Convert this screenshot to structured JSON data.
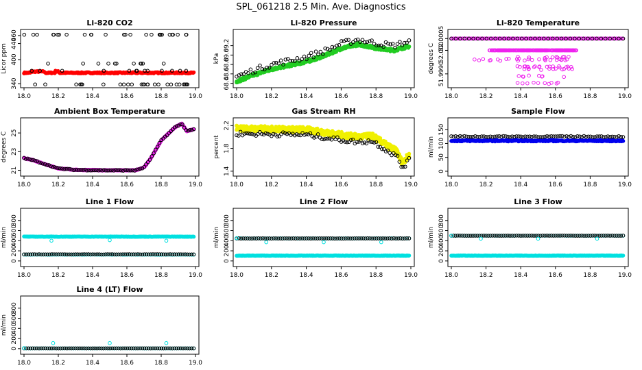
{
  "figure_title": "SPL_061218  2.5 Min. Ave. Diagnostics",
  "chart_data": [
    {
      "id": "co2",
      "type": "scatter",
      "title": "Li-820 CO2",
      "ylabel": "Licor ppm",
      "xlim": [
        18.0,
        19.0
      ],
      "ylim": [
        335,
        470
      ],
      "xticks": [
        "18.0",
        "18.2",
        "18.4",
        "18.6",
        "18.8",
        "19.0"
      ],
      "yticks": [
        {
          "v": 340,
          "t": "340"
        },
        {
          "v": 400,
          "t": "400"
        },
        {
          "v": 440,
          "t": "440"
        },
        {
          "v": 460,
          "t": "460"
        }
      ],
      "series": [
        {
          "name": "base",
          "color": "#ff0000",
          "style": "band",
          "base": 367,
          "noise": 1.5,
          "bumps": [
            [
              18.04,
              18.12,
              3
            ],
            [
              18.18,
              18.2,
              4
            ]
          ]
        },
        {
          "name": "diag",
          "color": "#000000",
          "style": "scatter",
          "n": 78,
          "groups": [
            [
              462,
              0.3
            ],
            [
              390,
              0.2
            ],
            [
              372,
              0.15
            ],
            [
              338,
              0.35
            ]
          ]
        }
      ]
    },
    {
      "id": "pressure",
      "type": "scatter",
      "title": "Li-820 Pressure",
      "ylabel": "kPa",
      "xlim": [
        18.0,
        19.0
      ],
      "ylim": [
        68.35,
        69.5
      ],
      "xticks": [
        "18.0",
        "18.2",
        "18.4",
        "18.6",
        "18.8",
        "19.0"
      ],
      "yticks": [
        {
          "v": 68.4,
          "t": "68.4"
        },
        {
          "v": 68.6,
          "t": "68.6"
        },
        {
          "v": 68.8,
          "t": "68.8"
        },
        {
          "v": 69.0,
          "t": "69.0"
        },
        {
          "v": 69.2,
          "t": "69.2"
        }
      ],
      "series": [
        {
          "name": "main",
          "color": "#22cc22",
          "style": "curve",
          "pts": [
            [
              18.0,
              68.44
            ],
            [
              18.1,
              68.58
            ],
            [
              18.2,
              68.7
            ],
            [
              18.4,
              68.86
            ],
            [
              18.5,
              68.98
            ],
            [
              18.6,
              69.14
            ],
            [
              18.7,
              69.23
            ],
            [
              18.8,
              69.15
            ],
            [
              18.9,
              69.1
            ],
            [
              18.98,
              69.18
            ]
          ],
          "noise": 0.03,
          "n": 240
        },
        {
          "name": "diag",
          "color": "#000000",
          "style": "scatter_follow",
          "offset": 0.1,
          "n": 75,
          "jitter": 0.06
        }
      ]
    },
    {
      "id": "licor_temp",
      "type": "scatter",
      "title": "Li-820 Temperature",
      "ylabel": "degrees C",
      "xlim": [
        18.0,
        19.0
      ],
      "ylim": [
        51.9985,
        52.0008
      ],
      "xticks": [
        "18.0",
        "18.2",
        "18.4",
        "18.6",
        "18.8",
        "19.0"
      ],
      "yticks": [
        {
          "v": 52.0005,
          "t": "52.0005"
        },
        {
          "v": 52.0,
          "t": "52.0000"
        },
        {
          "v": 51.999,
          "t": "51.9990"
        }
      ],
      "series": [
        {
          "name": "top",
          "color": "#ee22ee",
          "style": "row",
          "y": 52.0005,
          "x0": 18.0,
          "x1": 18.99
        },
        {
          "name": "mid",
          "color": "#ee22ee",
          "style": "row",
          "y": 52.0,
          "x0": 18.22,
          "x1": 18.72,
          "sparse": true
        },
        {
          "name": "low",
          "color": "#ee22ee",
          "style": "cluster"
        },
        {
          "name": "diag",
          "color": "#000000",
          "style": "row",
          "y": 52.0005,
          "x0": 18.0,
          "x1": 18.99,
          "n": 40
        }
      ]
    },
    {
      "id": "box_temp",
      "type": "scatter",
      "title": "Ambient Box Temperature",
      "ylabel": "degrees C",
      "xlim": [
        18.0,
        19.0
      ],
      "ylim": [
        20.6,
        26.4
      ],
      "xticks": [
        "18.0",
        "18.2",
        "18.4",
        "18.6",
        "18.8",
        "19.0"
      ],
      "yticks": [
        {
          "v": 21,
          "t": "21"
        },
        {
          "v": 23,
          "t": "23"
        },
        {
          "v": 25,
          "t": "25"
        }
      ],
      "series": [
        {
          "name": "main",
          "color": "#ee22ee",
          "style": "curve",
          "pts": [
            [
              18.0,
              22.3
            ],
            [
              18.05,
              22.1
            ],
            [
              18.1,
              21.8
            ],
            [
              18.2,
              21.2
            ],
            [
              18.3,
              21.05
            ],
            [
              18.5,
              21.0
            ],
            [
              18.65,
              21.0
            ],
            [
              18.7,
              21.3
            ],
            [
              18.74,
              22.3
            ],
            [
              18.8,
              24.2
            ],
            [
              18.88,
              25.6
            ],
            [
              18.92,
              26.0
            ],
            [
              18.95,
              25.2
            ],
            [
              18.99,
              25.4
            ]
          ],
          "noise": 0.04,
          "n": 200
        },
        {
          "name": "diag",
          "color": "#000000",
          "style": "scatter_follow",
          "offset": 0.0,
          "n": 90,
          "jitter": 0.05
        }
      ]
    },
    {
      "id": "rh",
      "type": "scatter",
      "title": "Gas Stream RH",
      "ylabel": "percent",
      "xlim": [
        18.0,
        19.0
      ],
      "ylim": [
        1.35,
        2.3
      ],
      "xticks": [
        "18.0",
        "18.2",
        "18.4",
        "18.6",
        "18.8",
        "19.0"
      ],
      "yticks": [
        {
          "v": 1.4,
          "t": "1.4"
        },
        {
          "v": 1.8,
          "t": "1.8"
        },
        {
          "v": 2.2,
          "t": "2.2"
        }
      ],
      "series": [
        {
          "name": "main",
          "color": "#f0f000",
          "style": "curve",
          "pts": [
            [
              18.0,
              2.15
            ],
            [
              18.2,
              2.14
            ],
            [
              18.4,
              2.13
            ],
            [
              18.55,
              2.06
            ],
            [
              18.7,
              2.0
            ],
            [
              18.78,
              2.02
            ],
            [
              18.85,
              1.88
            ],
            [
              18.92,
              1.75
            ],
            [
              18.95,
              1.55
            ],
            [
              18.99,
              1.68
            ]
          ],
          "noise": 0.05,
          "n": 300
        },
        {
          "name": "diag",
          "color": "#000000",
          "style": "scatter_follow",
          "offset": -0.09,
          "n": 90,
          "jitter": 0.04
        }
      ]
    },
    {
      "id": "sample_flow",
      "type": "scatter",
      "title": "Sample Flow",
      "ylabel": "ml/min",
      "xlim": [
        18.0,
        19.0
      ],
      "ylim": [
        -10,
        185
      ],
      "xticks": [
        "18.0",
        "18.2",
        "18.4",
        "18.6",
        "18.8",
        "19.0"
      ],
      "yticks": [
        {
          "v": 0,
          "t": "0"
        },
        {
          "v": 50,
          "t": "50"
        },
        {
          "v": 100,
          "t": "100"
        },
        {
          "v": 150,
          "t": "150"
        }
      ],
      "series": [
        {
          "name": "main",
          "color": "#0000ee",
          "style": "band",
          "base": 110,
          "noise": 2.5,
          "bumps": []
        },
        {
          "name": "diag",
          "color": "#000000",
          "style": "hline_pts",
          "y": 125,
          "n": 80,
          "jitter": 2
        }
      ]
    },
    {
      "id": "line1",
      "type": "scatter",
      "title": "Line 1 Flow",
      "ylabel": "ml/min",
      "xlim": [
        18.0,
        19.0
      ],
      "ylim": [
        -70,
        1000
      ],
      "xticks": [
        "18.0",
        "18.2",
        "18.4",
        "18.6",
        "18.8",
        "19.0"
      ],
      "yticks": [
        {
          "v": 0,
          "t": "0"
        },
        {
          "v": 200,
          "t": "200"
        },
        {
          "v": 400,
          "t": "400"
        },
        {
          "v": 600,
          "t": "600"
        },
        {
          "v": 800,
          "t": "800"
        }
      ],
      "series": [
        {
          "name": "cyan_hi",
          "color": "#00e0e0",
          "style": "band",
          "base": 480,
          "noise": 4,
          "bumps": []
        },
        {
          "name": "cyan_lo",
          "color": "#00e0e0",
          "style": "hline_pts",
          "y": 125,
          "n": 80,
          "jitter": 2
        },
        {
          "name": "diag",
          "color": "#000000",
          "style": "hline_pts",
          "y": 130,
          "n": 80,
          "jitter": 2
        },
        {
          "name": "spikes",
          "color": "#00e0e0",
          "style": "points",
          "pts": [
            [
              18.16,
              400
            ],
            [
              18.5,
              410
            ],
            [
              18.83,
              400
            ]
          ]
        }
      ]
    },
    {
      "id": "line2",
      "type": "scatter",
      "title": "Line 2 Flow",
      "ylabel": "ml/min",
      "xlim": [
        18.0,
        19.0
      ],
      "ylim": [
        -70,
        1000
      ],
      "xticks": [
        "18.0",
        "18.2",
        "18.4",
        "18.6",
        "18.8",
        "19.0"
      ],
      "yticks": [
        {
          "v": 0,
          "t": "0"
        },
        {
          "v": 200,
          "t": "200"
        },
        {
          "v": 400,
          "t": "400"
        },
        {
          "v": 600,
          "t": "600"
        },
        {
          "v": 800,
          "t": "800"
        }
      ],
      "series": [
        {
          "name": "cyan_lo",
          "color": "#00e0e0",
          "style": "band",
          "base": 105,
          "noise": 4,
          "bumps": []
        },
        {
          "name": "cyan_hi",
          "color": "#00e0e0",
          "style": "hline_pts",
          "y": 445,
          "n": 80,
          "jitter": 2
        },
        {
          "name": "diag",
          "color": "#000000",
          "style": "hline_pts",
          "y": 445,
          "n": 80,
          "jitter": 2
        },
        {
          "name": "spikes",
          "color": "#00e0e0",
          "style": "points",
          "pts": [
            [
              18.0,
              450
            ],
            [
              18.17,
              370
            ],
            [
              18.5,
              370
            ],
            [
              18.83,
              370
            ]
          ]
        }
      ]
    },
    {
      "id": "line3",
      "type": "scatter",
      "title": "Line 3 Flow",
      "ylabel": "ml/min",
      "xlim": [
        18.0,
        19.0
      ],
      "ylim": [
        -70,
        1000
      ],
      "xticks": [
        "18.0",
        "18.2",
        "18.4",
        "18.6",
        "18.8",
        "19.0"
      ],
      "yticks": [
        {
          "v": 0,
          "t": "0"
        },
        {
          "v": 200,
          "t": "200"
        },
        {
          "v": 400,
          "t": "400"
        },
        {
          "v": 600,
          "t": "600"
        },
        {
          "v": 800,
          "t": "800"
        }
      ],
      "series": [
        {
          "name": "cyan_lo",
          "color": "#00e0e0",
          "style": "band",
          "base": 105,
          "noise": 4,
          "bumps": []
        },
        {
          "name": "cyan_hi",
          "color": "#00e0e0",
          "style": "hline_pts",
          "y": 500,
          "n": 80,
          "jitter": 2
        },
        {
          "name": "diag",
          "color": "#000000",
          "style": "hline_pts",
          "y": 500,
          "n": 80,
          "jitter": 2
        },
        {
          "name": "spikes",
          "color": "#00e0e0",
          "style": "points",
          "pts": [
            [
              18.0,
              500
            ],
            [
              18.17,
              440
            ],
            [
              18.5,
              440
            ],
            [
              18.84,
              440
            ]
          ]
        }
      ]
    },
    {
      "id": "line4",
      "type": "scatter",
      "title": "Line 4 (LT) Flow",
      "ylabel": "ml/min",
      "xlim": [
        18.0,
        19.0
      ],
      "ylim": [
        -70,
        1000
      ],
      "xticks": [
        "18.0",
        "18.2",
        "18.4",
        "18.6",
        "18.8",
        "19.0"
      ],
      "yticks": [
        {
          "v": 0,
          "t": "0"
        },
        {
          "v": 200,
          "t": "200"
        },
        {
          "v": 400,
          "t": "400"
        },
        {
          "v": 600,
          "t": "600"
        },
        {
          "v": 800,
          "t": "800"
        }
      ],
      "series": [
        {
          "name": "cyan",
          "color": "#00e0e0",
          "style": "hline_pts",
          "y": 5,
          "n": 80,
          "jitter": 1
        },
        {
          "name": "diag",
          "color": "#000000",
          "style": "hline_pts",
          "y": 5,
          "n": 80,
          "jitter": 1
        },
        {
          "name": "spikes",
          "color": "#00e0e0",
          "style": "points",
          "pts": [
            [
              18.0,
              10
            ],
            [
              18.17,
              110
            ],
            [
              18.5,
              110
            ],
            [
              18.83,
              110
            ]
          ]
        }
      ]
    }
  ]
}
